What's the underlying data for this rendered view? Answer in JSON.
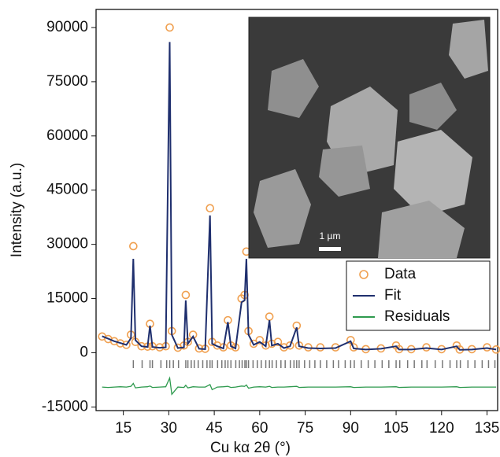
{
  "chart_data": {
    "type": "line",
    "x_label": "Cu kα 2θ (°)",
    "y_label": "Intensity (a.u.)",
    "inset_scale_label": "1 µm",
    "x": [
      8,
      10,
      12,
      14,
      16,
      17.5,
      18.3,
      19,
      21,
      23,
      23.8,
      24.6,
      27,
      29,
      30.3,
      31,
      33,
      35,
      35.6,
      36.3,
      38,
      40,
      42,
      43.6,
      44.3,
      46,
      48,
      49.5,
      50.5,
      52,
      54,
      55,
      55.6,
      56.3,
      58,
      60,
      62,
      63.2,
      64,
      66,
      68,
      70,
      72.2,
      73,
      76,
      80,
      85,
      90,
      91,
      95,
      100,
      105,
      106,
      110,
      115,
      120,
      125,
      126,
      130,
      135,
      138
    ],
    "series": [
      {
        "name": "Data",
        "color": "#f0a050",
        "marker": "circle",
        "values": [
          4500,
          3800,
          3200,
          2600,
          2200,
          5000,
          29500,
          3000,
          1800,
          1700,
          8000,
          1800,
          1500,
          1800,
          90000,
          6000,
          1400,
          2000,
          16000,
          3000,
          5000,
          1200,
          1100,
          40000,
          3000,
          2000,
          1500,
          9000,
          2000,
          1500,
          15000,
          16000,
          28000,
          6000,
          2500,
          3500,
          2000,
          10000,
          2500,
          3000,
          1500,
          2000,
          7500,
          2000,
          1500,
          1500,
          1500,
          3500,
          1500,
          1000,
          1200,
          2000,
          1000,
          1000,
          1500,
          1000,
          2000,
          900,
          1000,
          1500,
          900
        ]
      },
      {
        "name": "Fit",
        "color": "#1f2f6e",
        "values": [
          4600,
          3900,
          3200,
          2700,
          2200,
          4000,
          26000,
          3500,
          1800,
          1600,
          7500,
          1600,
          1400,
          1500,
          86000,
          5000,
          1300,
          1500,
          14500,
          2500,
          4500,
          1100,
          1000,
          38000,
          2500,
          1800,
          1200,
          8500,
          1800,
          1200,
          14000,
          14500,
          26000,
          5000,
          2200,
          3000,
          1800,
          9000,
          2000,
          2500,
          1300,
          1800,
          7000,
          1800,
          1300,
          1200,
          1300,
          3200,
          1200,
          900,
          1100,
          1800,
          900,
          900,
          1300,
          900,
          1800,
          800,
          900,
          1300,
          900
        ]
      },
      {
        "name": "Residuals",
        "color": "#2e9a4e",
        "values": [
          -9500,
          -9600,
          -9500,
          -9400,
          -9500,
          -9300,
          -8500,
          -9700,
          -9500,
          -9400,
          -9200,
          -9600,
          -9500,
          -9400,
          -7000,
          -11500,
          -9500,
          -9600,
          -9000,
          -9700,
          -9400,
          -9500,
          -9500,
          -8800,
          -10200,
          -9500,
          -9400,
          -9300,
          -9600,
          -9500,
          -9200,
          -9300,
          -8900,
          -9800,
          -9500,
          -9400,
          -9500,
          -9300,
          -9600,
          -9500,
          -9500,
          -9400,
          -9300,
          -9600,
          -9500,
          -9500,
          -9500,
          -9400,
          -9600,
          -9500,
          -9500,
          -9400,
          -9600,
          -9500,
          -9500,
          -9500,
          -9400,
          -9600,
          -9500,
          -9500,
          -9500
        ]
      }
    ],
    "reflections": [
      18.3,
      21.2,
      23.8,
      24.6,
      27.4,
      29.3,
      30.3,
      31.5,
      33.2,
      35.6,
      36.3,
      37.4,
      38.4,
      39.7,
      41.2,
      42.6,
      43.6,
      44.3,
      46.1,
      47.5,
      48.6,
      49.5,
      50.5,
      52.1,
      53.3,
      54.2,
      55.1,
      55.6,
      56.3,
      57.8,
      59.2,
      60.5,
      62.0,
      63.2,
      64.1,
      65.5,
      67.0,
      68.4,
      70.1,
      71.3,
      72.2,
      73.0,
      74.8,
      76.5,
      78.2,
      80.0,
      82.1,
      84.3,
      86.0,
      88.2,
      90.0,
      91.2,
      93.5,
      95.8,
      98.0,
      100.4,
      102.6,
      105.0,
      106.2,
      108.8,
      111.0,
      113.5,
      115.2,
      117.9,
      120.3,
      122.8,
      125.0,
      126.2,
      128.7,
      131.0,
      133.4,
      135.5,
      137.6
    ],
    "xlim": [
      6,
      138.5
    ],
    "ylim": [
      -16000,
      95000
    ],
    "xticks": [
      15,
      30,
      45,
      60,
      75,
      90,
      105,
      120,
      135
    ],
    "yticks": [
      -15000,
      0,
      15000,
      30000,
      45000,
      60000,
      75000,
      90000
    ],
    "legend": "lower-right",
    "grid": false
  }
}
